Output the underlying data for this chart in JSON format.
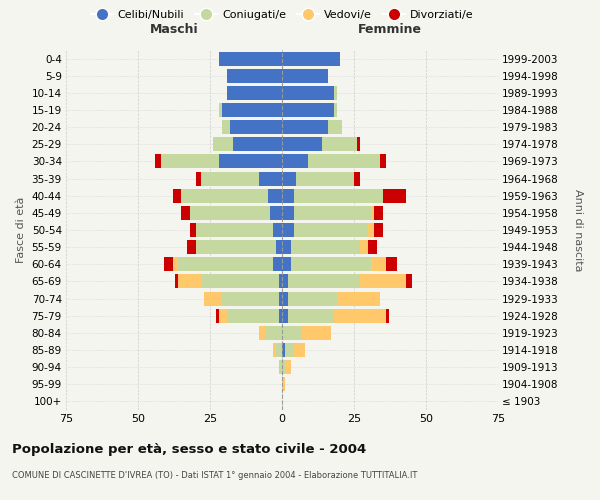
{
  "age_groups": [
    "100+",
    "95-99",
    "90-94",
    "85-89",
    "80-84",
    "75-79",
    "70-74",
    "65-69",
    "60-64",
    "55-59",
    "50-54",
    "45-49",
    "40-44",
    "35-39",
    "30-34",
    "25-29",
    "20-24",
    "15-19",
    "10-14",
    "5-9",
    "0-4"
  ],
  "birth_years": [
    "≤ 1903",
    "1904-1908",
    "1909-1913",
    "1914-1918",
    "1919-1923",
    "1924-1928",
    "1929-1933",
    "1934-1938",
    "1939-1943",
    "1944-1948",
    "1949-1953",
    "1954-1958",
    "1959-1963",
    "1964-1968",
    "1969-1973",
    "1974-1978",
    "1979-1983",
    "1984-1988",
    "1989-1993",
    "1994-1998",
    "1999-2003"
  ],
  "male": {
    "celibe": [
      0,
      0,
      0,
      0,
      0,
      1,
      1,
      1,
      3,
      2,
      3,
      4,
      5,
      8,
      22,
      17,
      18,
      21,
      19,
      19,
      22
    ],
    "coniugato": [
      0,
      0,
      1,
      2,
      6,
      18,
      20,
      27,
      33,
      28,
      27,
      28,
      30,
      20,
      20,
      7,
      3,
      1,
      0,
      0,
      0
    ],
    "vedovo": [
      0,
      0,
      0,
      1,
      2,
      3,
      6,
      8,
      2,
      0,
      0,
      0,
      0,
      0,
      0,
      0,
      0,
      0,
      0,
      0,
      0
    ],
    "divorziato": [
      0,
      0,
      0,
      0,
      0,
      1,
      0,
      1,
      3,
      3,
      2,
      3,
      3,
      2,
      2,
      0,
      0,
      0,
      0,
      0,
      0
    ]
  },
  "female": {
    "nubile": [
      0,
      0,
      0,
      1,
      0,
      2,
      2,
      2,
      3,
      3,
      4,
      4,
      4,
      5,
      9,
      14,
      16,
      18,
      18,
      16,
      20
    ],
    "coniugata": [
      0,
      0,
      1,
      3,
      7,
      16,
      17,
      25,
      28,
      24,
      26,
      27,
      31,
      20,
      25,
      12,
      5,
      1,
      1,
      0,
      0
    ],
    "vedova": [
      0,
      1,
      2,
      4,
      10,
      18,
      15,
      16,
      5,
      3,
      2,
      1,
      0,
      0,
      0,
      0,
      0,
      0,
      0,
      0,
      0
    ],
    "divorziata": [
      0,
      0,
      0,
      0,
      0,
      1,
      0,
      2,
      4,
      3,
      3,
      3,
      8,
      2,
      2,
      1,
      0,
      0,
      0,
      0,
      0
    ]
  },
  "colors": {
    "celibe": "#4472c4",
    "coniugato": "#c5d8a0",
    "vedovo": "#ffc96b",
    "divorziato": "#cc0000"
  },
  "xlim": 75,
  "title": "Popolazione per età, sesso e stato civile - 2004",
  "subtitle": "COMUNE DI CASCINETTE D'IVREA (TO) - Dati ISTAT 1° gennaio 2004 - Elaborazione TUTTITALIA.IT",
  "ylabel_left": "Fasce di età",
  "ylabel_right": "Anni di nascita",
  "xlabel_maschi": "Maschi",
  "xlabel_femmine": "Femmine",
  "legend_labels": [
    "Celibi/Nubili",
    "Coniugati/e",
    "Vedovi/e",
    "Divorziati/e"
  ],
  "bg_color": "#f5f5f0",
  "grid_color": "#cccccc"
}
